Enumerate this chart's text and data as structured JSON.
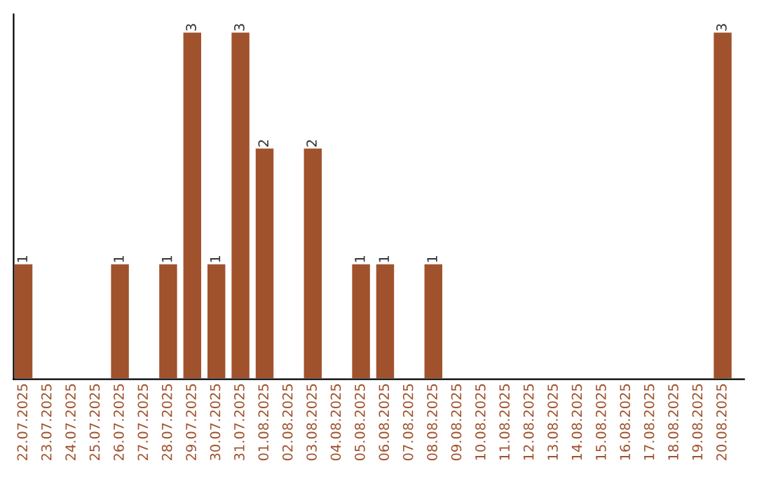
{
  "chart_data": {
    "type": "bar",
    "categories": [
      "22.07.2025",
      "23.07.2025",
      "24.07.2025",
      "25.07.2025",
      "26.07.2025",
      "27.07.2025",
      "28.07.2025",
      "29.07.2025",
      "30.07.2025",
      "31.07.2025",
      "01.08.2025",
      "02.08.2025",
      "03.08.2025",
      "04.08.2025",
      "05.08.2025",
      "06.08.2025",
      "07.08.2025",
      "08.08.2025",
      "09.08.2025",
      "10.08.2025",
      "11.08.2025",
      "12.08.2025",
      "13.08.2025",
      "14.08.2025",
      "15.08.2025",
      "16.08.2025",
      "17.08.2025",
      "18.08.2025",
      "19.08.2025",
      "20.08.2025"
    ],
    "values": [
      1,
      null,
      null,
      null,
      1,
      null,
      1,
      3,
      1,
      3,
      2,
      null,
      2,
      null,
      1,
      1,
      null,
      1,
      null,
      null,
      null,
      null,
      null,
      null,
      null,
      null,
      null,
      null,
      null,
      3
    ],
    "color": "#a0522d",
    "data_labels": true,
    "tick_labels": "x",
    "grid": false,
    "legend": false
  }
}
